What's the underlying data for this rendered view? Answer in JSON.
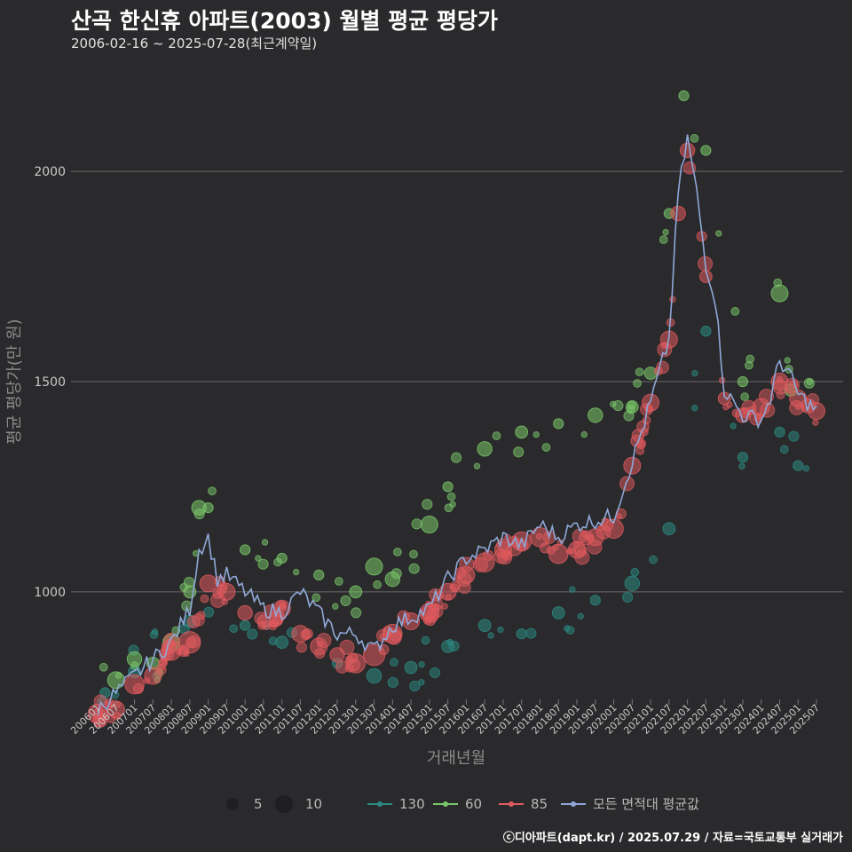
{
  "header": {
    "title": "산곡 한신휴 아파트(2003) 월별 평균 평당가",
    "subtitle": "2006-02-16 ~ 2025-07-28(최근계약일)"
  },
  "credit": "ⓒ디아파트(dapt.kr) / 2025.07.29 / 자료=국토교통부 실거래가",
  "colors": {
    "background": "#2a2a2c",
    "grid": "#6a6a6a",
    "area_130": "#2a8a82",
    "area_60": "#7ac86a",
    "area_85": "#e05a5e",
    "avg_line": "#8fa8d8"
  },
  "chart_data": {
    "type": "line+scatter",
    "title": "산곡 한신휴 아파트(2003) 월별 평균 평당가",
    "xlabel": "거래년월",
    "ylabel": "평균 평당가(만 원)",
    "ylim": [
      740,
      2260
    ],
    "yticks": [
      1000,
      1500,
      2000
    ],
    "xticks": [
      "200601",
      "200607",
      "200701",
      "200707",
      "200801",
      "200807",
      "200901",
      "200907",
      "201001",
      "201007",
      "201101",
      "201107",
      "201201",
      "201207",
      "201301",
      "201307",
      "201401",
      "201407",
      "201501",
      "201507",
      "201601",
      "201607",
      "201701",
      "201707",
      "201801",
      "201807",
      "201901",
      "201907",
      "202001",
      "202007",
      "202101",
      "202107",
      "202201",
      "202207",
      "202301",
      "202307",
      "202401",
      "202407",
      "202501",
      "202507"
    ],
    "legend": {
      "size_title": "",
      "sizes": [
        {
          "label": "5",
          "value": 5
        },
        {
          "label": "10",
          "value": 10
        }
      ],
      "areas": [
        {
          "label": "130",
          "key": "130"
        },
        {
          "label": "60",
          "key": "60"
        },
        {
          "label": "85",
          "key": "85"
        },
        {
          "label": "모든 면적대 평균값",
          "key": "avg"
        }
      ]
    },
    "avg_line_anchors": [
      [
        2006.0,
        720
      ],
      [
        2006.5,
        760
      ],
      [
        2007.0,
        800
      ],
      [
        2007.5,
        840
      ],
      [
        2008.0,
        880
      ],
      [
        2008.5,
        960
      ],
      [
        2008.75,
        1100
      ],
      [
        2009.0,
        1130
      ],
      [
        2009.25,
        1030
      ],
      [
        2009.5,
        1040
      ],
      [
        2010.0,
        1000
      ],
      [
        2010.5,
        960
      ],
      [
        2011.0,
        950
      ],
      [
        2011.5,
        1000
      ],
      [
        2012.0,
        950
      ],
      [
        2012.5,
        900
      ],
      [
        2013.0,
        900
      ],
      [
        2013.5,
        860
      ],
      [
        2014.0,
        920
      ],
      [
        2014.5,
        940
      ],
      [
        2015.0,
        960
      ],
      [
        2015.5,
        1030
      ],
      [
        2016.0,
        1080
      ],
      [
        2016.5,
        1100
      ],
      [
        2017.0,
        1130
      ],
      [
        2017.5,
        1110
      ],
      [
        2018.0,
        1160
      ],
      [
        2018.5,
        1130
      ],
      [
        2019.0,
        1160
      ],
      [
        2019.5,
        1170
      ],
      [
        2020.0,
        1180
      ],
      [
        2020.5,
        1310
      ],
      [
        2021.0,
        1450
      ],
      [
        2021.5,
        1600
      ],
      [
        2021.75,
        1950
      ],
      [
        2022.0,
        2080
      ],
      [
        2022.25,
        1950
      ],
      [
        2022.5,
        1780
      ],
      [
        2022.75,
        1700
      ],
      [
        2023.0,
        1480
      ],
      [
        2023.5,
        1420
      ],
      [
        2024.0,
        1410
      ],
      [
        2024.25,
        1460
      ],
      [
        2024.5,
        1550
      ],
      [
        2024.75,
        1520
      ],
      [
        2025.0,
        1470
      ],
      [
        2025.5,
        1430
      ]
    ],
    "scatter_anchors": {
      "130": [
        [
          2006.2,
          760,
          2
        ],
        [
          2007.0,
          810,
          3
        ],
        [
          2008.5,
          930,
          3
        ],
        [
          2010.0,
          920,
          2
        ],
        [
          2011.0,
          880,
          3
        ],
        [
          2012.5,
          830,
          2
        ],
        [
          2013.5,
          800,
          4
        ],
        [
          2014.5,
          820,
          3
        ],
        [
          2015.5,
          870,
          3
        ],
        [
          2016.5,
          920,
          3
        ],
        [
          2017.5,
          900,
          2
        ],
        [
          2018.5,
          950,
          3
        ],
        [
          2019.5,
          980,
          2
        ],
        [
          2020.5,
          1020,
          4
        ],
        [
          2021.5,
          1150,
          3
        ],
        [
          2022.5,
          1620,
          2
        ],
        [
          2023.5,
          1320,
          2
        ],
        [
          2024.5,
          1380,
          2
        ],
        [
          2025.0,
          1300,
          2
        ]
      ],
      "60": [
        [
          2006.5,
          790,
          5
        ],
        [
          2007.0,
          840,
          4
        ],
        [
          2007.5,
          830,
          3
        ],
        [
          2008.0,
          880,
          5
        ],
        [
          2008.5,
          1000,
          3
        ],
        [
          2008.75,
          1200,
          4
        ],
        [
          2009.0,
          1200,
          2
        ],
        [
          2010.0,
          1100,
          2
        ],
        [
          2011.0,
          1080,
          2
        ],
        [
          2012.0,
          1040,
          2
        ],
        [
          2013.0,
          1000,
          3
        ],
        [
          2013.5,
          1060,
          5
        ],
        [
          2014.0,
          1030,
          4
        ],
        [
          2015.0,
          1160,
          5
        ],
        [
          2015.5,
          1250,
          2
        ],
        [
          2016.5,
          1340,
          4
        ],
        [
          2017.5,
          1380,
          3
        ],
        [
          2018.5,
          1400,
          2
        ],
        [
          2019.5,
          1420,
          4
        ],
        [
          2020.5,
          1440,
          3
        ],
        [
          2021.0,
          1520,
          3
        ],
        [
          2021.5,
          1900,
          2
        ],
        [
          2021.9,
          2180,
          2
        ],
        [
          2022.5,
          2050,
          2
        ],
        [
          2023.5,
          1500,
          2
        ],
        [
          2024.5,
          1710,
          5
        ],
        [
          2024.8,
          1480,
          3
        ]
      ],
      "85": [
        [
          2006.0,
          710,
          6
        ],
        [
          2006.5,
          720,
          5
        ],
        [
          2007.0,
          780,
          6
        ],
        [
          2007.5,
          800,
          5
        ],
        [
          2008.0,
          860,
          6
        ],
        [
          2008.5,
          880,
          7
        ],
        [
          2009.0,
          1020,
          5
        ],
        [
          2009.5,
          1000,
          5
        ],
        [
          2010.0,
          950,
          4
        ],
        [
          2010.5,
          930,
          3
        ],
        [
          2011.0,
          960,
          5
        ],
        [
          2011.5,
          900,
          5
        ],
        [
          2012.0,
          870,
          5
        ],
        [
          2012.5,
          850,
          4
        ],
        [
          2013.0,
          830,
          6
        ],
        [
          2013.5,
          850,
          7
        ],
        [
          2014.0,
          900,
          6
        ],
        [
          2014.5,
          930,
          5
        ],
        [
          2015.0,
          950,
          6
        ],
        [
          2015.5,
          1000,
          5
        ],
        [
          2016.0,
          1040,
          5
        ],
        [
          2016.5,
          1070,
          6
        ],
        [
          2017.0,
          1100,
          5
        ],
        [
          2017.5,
          1120,
          6
        ],
        [
          2018.0,
          1130,
          6
        ],
        [
          2018.5,
          1090,
          6
        ],
        [
          2019.0,
          1100,
          5
        ],
        [
          2019.5,
          1130,
          5
        ],
        [
          2020.0,
          1150,
          6
        ],
        [
          2020.5,
          1300,
          5
        ],
        [
          2021.0,
          1450,
          5
        ],
        [
          2021.5,
          1600,
          5
        ],
        [
          2021.75,
          1900,
          4
        ],
        [
          2022.0,
          2050,
          4
        ],
        [
          2022.5,
          1750,
          3
        ],
        [
          2023.0,
          1460,
          3
        ],
        [
          2023.5,
          1420,
          4
        ],
        [
          2024.0,
          1440,
          5
        ],
        [
          2024.5,
          1500,
          5
        ],
        [
          2025.0,
          1460,
          5
        ],
        [
          2025.5,
          1430,
          5
        ]
      ]
    }
  }
}
